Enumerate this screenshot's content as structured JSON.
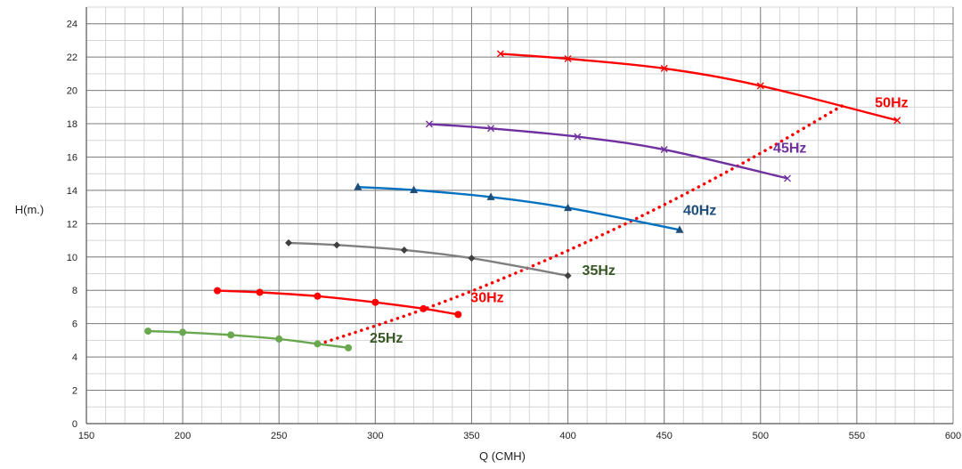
{
  "chart_data": {
    "type": "line",
    "xlabel": "Q (CMH)",
    "ylabel": "H(m.)",
    "xlim": [
      150,
      600
    ],
    "ylim": [
      0,
      25
    ],
    "xticks": [
      150,
      200,
      250,
      300,
      350,
      400,
      450,
      500,
      550,
      600
    ],
    "yticks": [
      0,
      2,
      4,
      6,
      8,
      10,
      12,
      14,
      16,
      18,
      20,
      22,
      24
    ],
    "grid": {
      "major": true,
      "minor": true,
      "x_minor_step": 10,
      "y_minor_step": 1
    },
    "series": [
      {
        "name": "25Hz",
        "color": "#6aa84f",
        "label_color": "#375623",
        "marker": "circle",
        "x": [
          182,
          200,
          225,
          250,
          270,
          286
        ],
        "y": [
          5.55,
          5.48,
          5.32,
          5.08,
          4.79,
          4.55
        ]
      },
      {
        "name": "30Hz",
        "color": "#ff0000",
        "label_color": "#ff0000",
        "marker": "circle",
        "x": [
          218,
          240,
          270,
          300,
          325,
          343
        ],
        "y": [
          7.98,
          7.88,
          7.65,
          7.28,
          6.9,
          6.55
        ]
      },
      {
        "name": "35Hz",
        "color": "#7f7f7f",
        "label_color": "#375623",
        "marker": "diamond",
        "x": [
          255,
          280,
          315,
          350,
          400
        ],
        "y": [
          10.85,
          10.72,
          10.42,
          9.93,
          8.88
        ]
      },
      {
        "name": "40Hz",
        "color": "#0070c0",
        "label_color": "#1f4e79",
        "marker": "triangle",
        "x": [
          291,
          320,
          360,
          400,
          458
        ],
        "y": [
          14.2,
          14.02,
          13.6,
          12.95,
          11.63
        ]
      },
      {
        "name": "45Hz",
        "color": "#7030a0",
        "label_color": "#7030a0",
        "marker": "x",
        "x": [
          328,
          360,
          405,
          450,
          514
        ],
        "y": [
          17.98,
          17.72,
          17.22,
          16.45,
          14.72
        ]
      },
      {
        "name": "50Hz",
        "color": "#ff0000",
        "label_color": "#ff0000",
        "marker": "x",
        "x": [
          365,
          400,
          450,
          500,
          571
        ],
        "y": [
          22.2,
          21.9,
          21.32,
          20.28,
          18.2
        ]
      }
    ],
    "system_curve": {
      "color": "#ff0000",
      "style": "dotted",
      "x": [
        271,
        326,
        380,
        434,
        489,
        543
      ],
      "y": [
        4.78,
        6.9,
        9.38,
        12.22,
        15.52,
        19.12
      ]
    }
  }
}
